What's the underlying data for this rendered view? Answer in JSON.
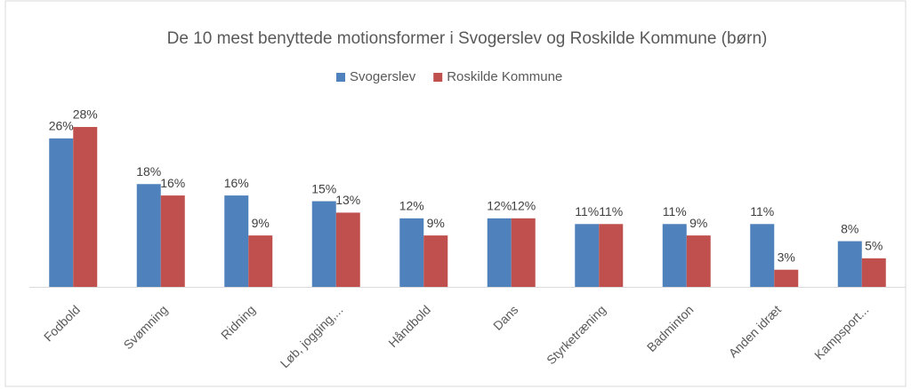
{
  "chart_data": {
    "type": "bar",
    "title": "De 10 mest benyttede motionsformer i Svogerslev og Roskilde Kommune (børn)",
    "categories": [
      "Fodbold",
      "Svømning",
      "Ridning",
      "Løb, jogging,...",
      "Håndbold",
      "Dans",
      "Styrketræning",
      "Badminton",
      "Anden idræt",
      "Kampsport..."
    ],
    "series": [
      {
        "name": "Svogerslev",
        "color": "#4f81bd",
        "values": [
          26,
          18,
          16,
          15,
          12,
          12,
          11,
          11,
          11,
          8
        ],
        "value_labels": [
          "26%",
          "18%",
          "16%",
          "15%",
          "12%",
          "12%",
          "11%",
          "11%",
          "11%",
          "8%"
        ]
      },
      {
        "name": "Roskilde Kommune",
        "color": "#c0504d",
        "values": [
          28,
          16,
          9,
          13,
          9,
          12,
          11,
          9,
          3,
          5
        ],
        "value_labels": [
          "28%",
          "16%",
          "9%",
          "13%",
          "9%",
          "12%",
          "11%",
          "9%",
          "3%",
          "5%"
        ]
      }
    ],
    "legend": "top"
  }
}
